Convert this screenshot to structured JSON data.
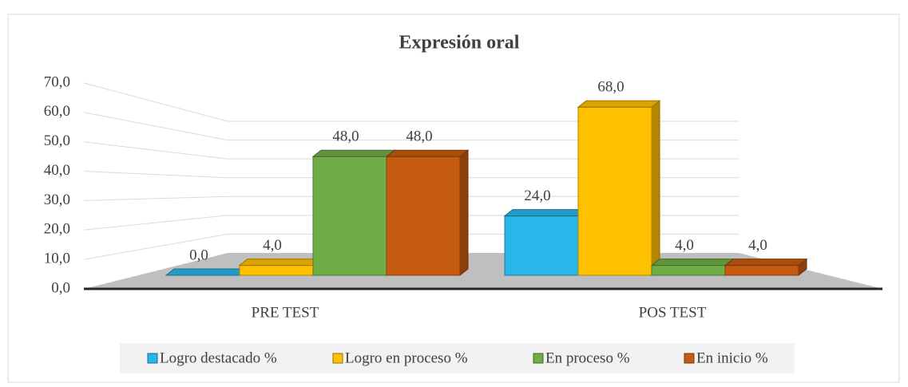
{
  "chart_data": {
    "type": "bar3d",
    "title": "Expresión oral",
    "categories": [
      "PRE TEST",
      "POS TEST"
    ],
    "series": [
      {
        "name": "Logro destacado %",
        "color": "#29b6e8",
        "values": [
          0,
          24
        ],
        "value_labels": [
          "0,0",
          "24,0"
        ]
      },
      {
        "name": "Logro en proceso %",
        "color": "#ffc000",
        "values": [
          4,
          68
        ],
        "value_labels": [
          "4,0",
          "68,0"
        ]
      },
      {
        "name": "En proceso %",
        "color": "#70ad47",
        "values": [
          48,
          4
        ],
        "value_labels": [
          "48,0",
          "4,0"
        ]
      },
      {
        "name": "En inicio %",
        "color": "#c55a11",
        "values": [
          48,
          4
        ],
        "value_labels": [
          "48,0",
          "4,0"
        ]
      }
    ],
    "ylim": [
      0,
      70
    ],
    "yticks": [
      {
        "value": 0,
        "label": "0,0"
      },
      {
        "value": 10,
        "label": "10,0"
      },
      {
        "value": 20,
        "label": "20,0"
      },
      {
        "value": 30,
        "label": "30,0"
      },
      {
        "value": 40,
        "label": "40,0"
      },
      {
        "value": 50,
        "label": "50,0"
      },
      {
        "value": 60,
        "label": "60,0"
      },
      {
        "value": 70,
        "label": "70,0"
      }
    ],
    "grid": true,
    "legend": "bottom"
  }
}
